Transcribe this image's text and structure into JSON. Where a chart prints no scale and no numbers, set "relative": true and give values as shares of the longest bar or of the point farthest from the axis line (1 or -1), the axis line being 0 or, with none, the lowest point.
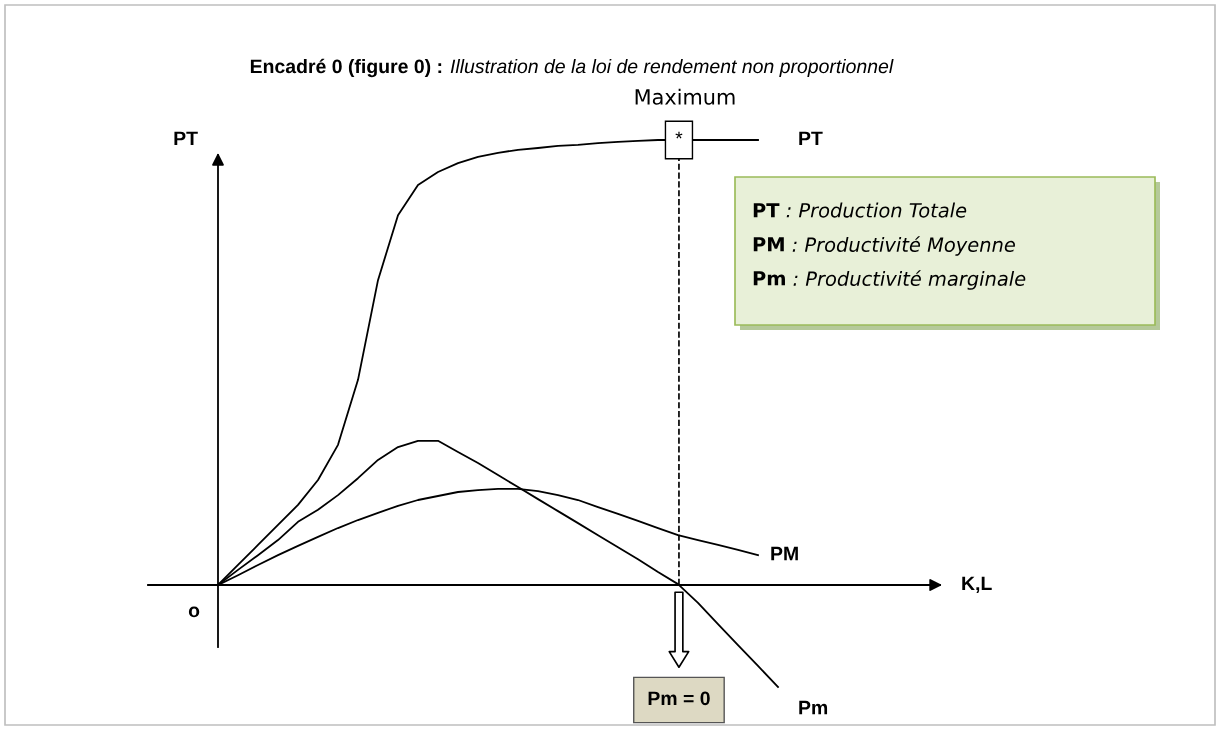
{
  "chart_data": {
    "type": "line",
    "relative": true,
    "title": "Encadré 0 (figure 0) :",
    "subtitle": "Illustration de la loi de rendement non proportionnel",
    "ylabel": "PT",
    "categories": [
      null,
      null,
      null,
      null,
      null,
      null,
      null,
      null,
      null,
      null,
      null,
      null,
      null,
      null,
      null,
      null,
      null,
      null,
      null,
      null,
      null,
      null,
      null,
      null,
      null,
      null,
      null,
      null,
      null,
      null
    ],
    "series": [
      {
        "name": "PT",
        "color": "#000000",
        "values": [
          0,
          0.045,
          0.09,
          0.135,
          0.18,
          0.236,
          0.315,
          0.461,
          0.685,
          0.831,
          0.899,
          0.928,
          0.948,
          0.962,
          0.971,
          0.978,
          0.982,
          0.987,
          0.989,
          0.993,
          0.996,
          0.998,
          1,
          null,
          1,
          1,
          1,
          1,
          null,
          null
        ]
      },
      {
        "name": "PM",
        "color": "#000000",
        "values": [
          0,
          0.022,
          0.045,
          0.067,
          0.088,
          0.108,
          0.128,
          0.146,
          0.162,
          0.178,
          0.191,
          0.2,
          0.209,
          0.213,
          0.216,
          0.216,
          0.211,
          0.202,
          0.191,
          0.175,
          0.16,
          0.144,
          0.128,
          0.112,
          0.101,
          0.09,
          0.079,
          0.067,
          null,
          null
        ]
      },
      {
        "name": "Pm",
        "color": "#000000",
        "values": [
          0,
          0.034,
          0.067,
          0.101,
          0.142,
          0.169,
          0.202,
          0.24,
          0.281,
          0.31,
          0.324,
          0.324,
          0.299,
          0.274,
          0.247,
          0.22,
          0.193,
          0.166,
          0.139,
          0.112,
          0.085,
          0.058,
          0.029,
          0.002,
          -0.04,
          -0.088,
          -0.135,
          -0.182,
          -0.229,
          null
        ]
      }
    ],
    "annotations": [
      "o",
      "Maximum",
      "*",
      "Pm = 0",
      "PT : Production Totale",
      "PM : Productivité Moyenne",
      "Pm : Productivité marginale",
      "K,L"
    ],
    "marker": "none",
    "line_style": "solid",
    "legend": false
  }
}
